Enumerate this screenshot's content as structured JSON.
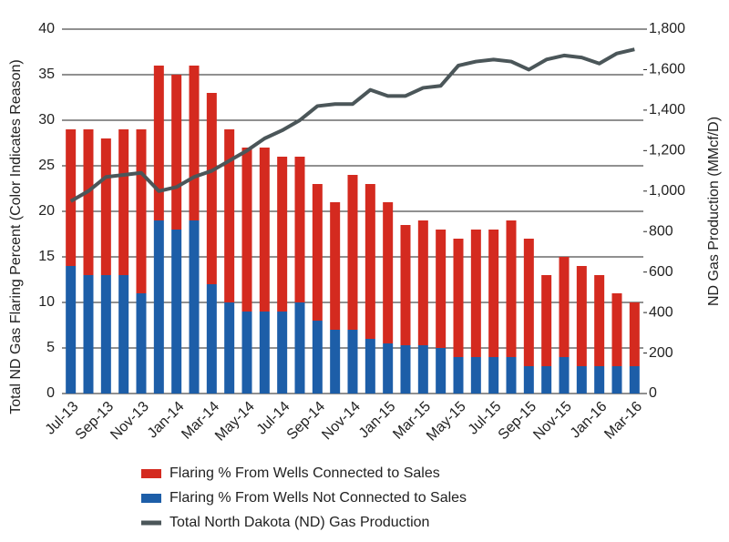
{
  "chart_data": {
    "type": "stacked-bar-line",
    "ylabel": "Total ND Gas Flaring Percent (Color Indicates Reason)",
    "y2label": "ND Gas Production (MMcf/D)",
    "categories": [
      "Jul-13",
      null,
      "Sep-13",
      null,
      "Nov-13",
      null,
      "Jan-14",
      null,
      "Mar-14",
      null,
      "May-14",
      null,
      "Jul-14",
      null,
      "Sep-14",
      null,
      "Nov-14",
      null,
      "Jan-15",
      null,
      "Mar-15",
      null,
      "May-15",
      null,
      "Jul-15",
      null,
      "Sep-15",
      null,
      "Nov-15",
      null,
      "Jan-16",
      null,
      "Mar-16"
    ],
    "series": [
      {
        "name": "Flaring % From Wells Connected to Sales",
        "color": "#d42a1f",
        "kind": "bar",
        "values": [
          15,
          16,
          15,
          16,
          18,
          17,
          17,
          17,
          21,
          19,
          18,
          18,
          17,
          16,
          15,
          14,
          17,
          17,
          15.5,
          13.2,
          13.7,
          13,
          13,
          14,
          14,
          15,
          14,
          10,
          11,
          11,
          10,
          8,
          7
        ]
      },
      {
        "name": "Flaring % From Wells Not Connected to Sales",
        "color": "#1d5ea8",
        "kind": "bar",
        "values": [
          14,
          13,
          13,
          13,
          11,
          19,
          18,
          19,
          12,
          10,
          9,
          9,
          9,
          10,
          8,
          7,
          7,
          6,
          5.5,
          5.3,
          5.3,
          5,
          4,
          4,
          4,
          4,
          3,
          3,
          4,
          3,
          3,
          3,
          3
        ]
      },
      {
        "name": "Total North Dakota (ND) Gas Production",
        "color": "#4b5659",
        "kind": "line",
        "axis": "y2",
        "values": [
          950,
          1000,
          1070,
          1080,
          1090,
          1000,
          1020,
          1070,
          1100,
          1150,
          1200,
          1260,
          1300,
          1350,
          1420,
          1430,
          1430,
          1500,
          1470,
          1470,
          1510,
          1520,
          1620,
          1640,
          1650,
          1640,
          1600,
          1650,
          1670,
          1660,
          1630,
          1680,
          1700
        ]
      }
    ],
    "ylim": [
      0,
      40
    ],
    "yticks": [
      0,
      5,
      10,
      15,
      20,
      25,
      30,
      35,
      40
    ],
    "y2lim": [
      0,
      1800
    ],
    "y2ticks": [
      0,
      200,
      400,
      600,
      800,
      {
        "value": 1000,
        "label": "1,000"
      },
      {
        "value": 1200,
        "label": "1,200"
      },
      {
        "value": 1400,
        "label": "1,400"
      },
      {
        "value": 1600,
        "label": "1,600"
      },
      {
        "value": 1800,
        "label": "1,800"
      }
    ],
    "grid": true
  }
}
